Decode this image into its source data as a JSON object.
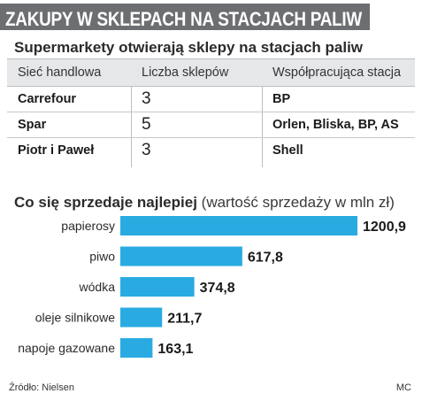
{
  "header": {
    "title": "ZAKUPY W SKLEPACH NA STACJACH PALIW"
  },
  "table": {
    "title": "Supermarkety otwierają sklepy na stacjach paliw",
    "columns": [
      "Sieć handlowa",
      "Liczba sklepów",
      "Współpracująca stacja"
    ],
    "rows": [
      {
        "network": "Carrefour",
        "count": "3",
        "station": "BP"
      },
      {
        "network": "Spar",
        "count": "5",
        "station": "Orlen, Bliska, BP, AS"
      },
      {
        "network": "Piotr i Paweł",
        "count": "3",
        "station": "Shell"
      }
    ]
  },
  "chart_data": {
    "type": "bar",
    "orientation": "horizontal",
    "title": "Co się sprzedaje najlepiej",
    "subtitle": "(wartość sprzedaży w mln zł)",
    "categories": [
      "papierosy",
      "piwo",
      "wódka",
      "oleje silnikowe",
      "napoje gazowane"
    ],
    "values": [
      1200.9,
      617.8,
      374.8,
      211.7,
      163.1
    ],
    "value_labels": [
      "1200,9",
      "617,8",
      "374,8",
      "211,7",
      "163,1"
    ],
    "xlim": [
      0,
      1200.9
    ],
    "grid": false,
    "bar_color": "#29abe2"
  },
  "footer": {
    "source": "Źródło: Nielsen",
    "credit": "MC"
  },
  "colors": {
    "title_band": "#6d6e71",
    "table_header": "#e6e7e8",
    "bar": "#29abe2"
  }
}
